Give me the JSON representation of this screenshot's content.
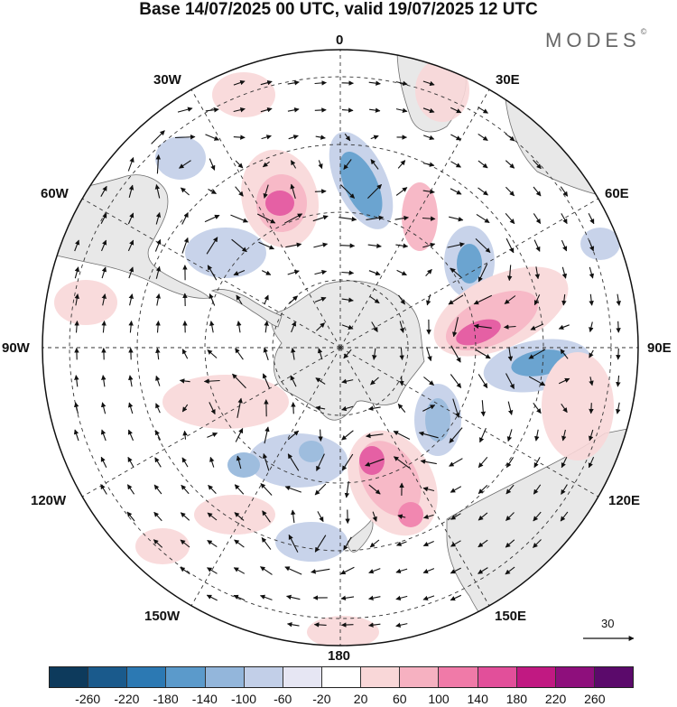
{
  "header": {
    "title": "Base 14/07/2025 00 UTC, valid 19/07/2025 12 UTC",
    "brand": "MODES",
    "brand_mark": "©"
  },
  "map": {
    "projection": "south-polar-stereographic",
    "longitude_labels": {
      "top": "0",
      "bottom": "180",
      "left": "90W",
      "right": "90E",
      "nw30": "30W",
      "ne30": "30E",
      "nw60": "60W",
      "ne60": "60E",
      "sw120": "120W",
      "se120": "120E",
      "sw150": "150W",
      "se150": "150E"
    },
    "vector_scale_label": "30",
    "colors": {
      "land": "#e8e8e8",
      "coast": "#6f6f6f",
      "graticule": "#333333"
    }
  },
  "colorbar": {
    "ticks": [
      "-260",
      "-220",
      "-180",
      "-140",
      "-100",
      "-60",
      "-20",
      "20",
      "60",
      "100",
      "140",
      "180",
      "220",
      "260"
    ],
    "colors": [
      "#0d3a5c",
      "#1a5a8c",
      "#2c79b3",
      "#5b9acb",
      "#93b6db",
      "#c2cfe8",
      "#e6e6f3",
      "#ffffff",
      "#f9d7d8",
      "#f6b1c1",
      "#f07aa8",
      "#e24f9a",
      "#c11982",
      "#8e0f7c",
      "#5b0a6b"
    ]
  }
}
